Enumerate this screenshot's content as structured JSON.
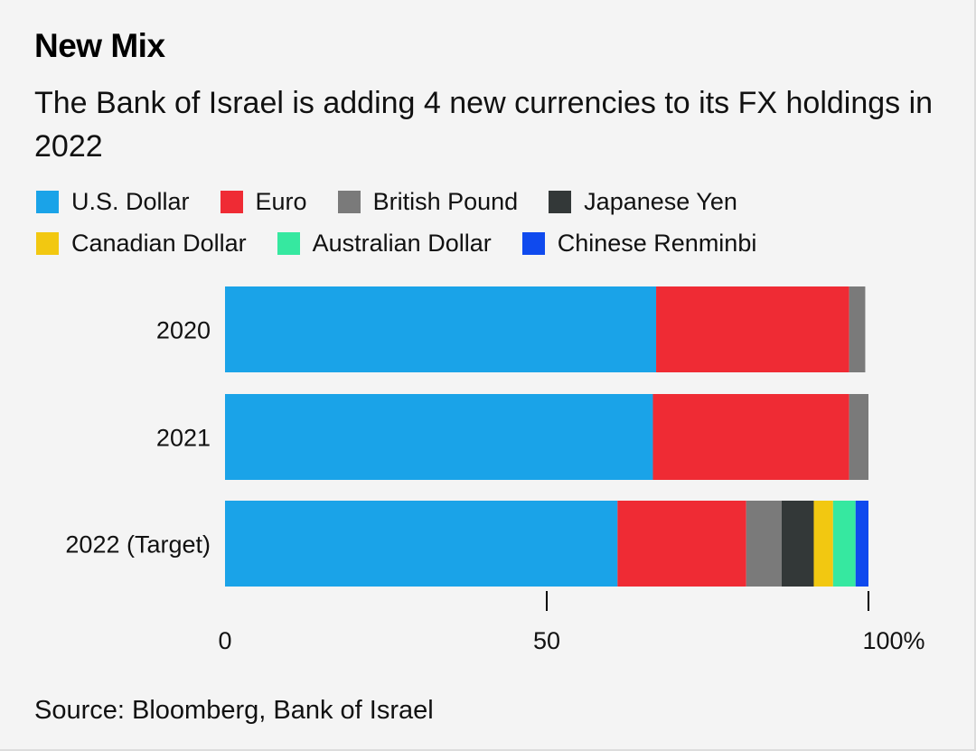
{
  "chart_data": {
    "type": "bar",
    "orientation": "horizontal",
    "stacked": true,
    "title": "New Mix",
    "subtitle": "The Bank of Israel is adding 4 new currencies to its FX holdings in 2022",
    "source": "Source: Bloomberg, Bank of Israel",
    "categories": [
      "2020",
      "2021",
      "2022 (Target)"
    ],
    "series": [
      {
        "name": "U.S. Dollar",
        "color": "#1aa3e8",
        "values": [
          67,
          66.5,
          61
        ]
      },
      {
        "name": "Euro",
        "color": "#ef2b34",
        "values": [
          30,
          30.5,
          20
        ]
      },
      {
        "name": "British Pound",
        "color": "#7a7a7a",
        "values": [
          2.5,
          3,
          5.5
        ]
      },
      {
        "name": "Japanese Yen",
        "color": "#333838",
        "values": [
          0,
          0,
          5
        ]
      },
      {
        "name": "Canadian Dollar",
        "color": "#f2c811",
        "values": [
          0,
          0,
          3
        ]
      },
      {
        "name": "Australian Dollar",
        "color": "#36e8a0",
        "values": [
          0,
          0,
          3.5
        ]
      },
      {
        "name": "Chinese Renminbi",
        "color": "#0f4aee",
        "values": [
          0,
          0,
          2
        ]
      }
    ],
    "xlim": [
      0,
      100
    ],
    "xticks": [
      {
        "value": 0,
        "label": "0"
      },
      {
        "value": 50,
        "label": "50"
      },
      {
        "value": 100,
        "label": "100%"
      }
    ],
    "xlabel": "",
    "ylabel": "",
    "legend_position": "top"
  }
}
